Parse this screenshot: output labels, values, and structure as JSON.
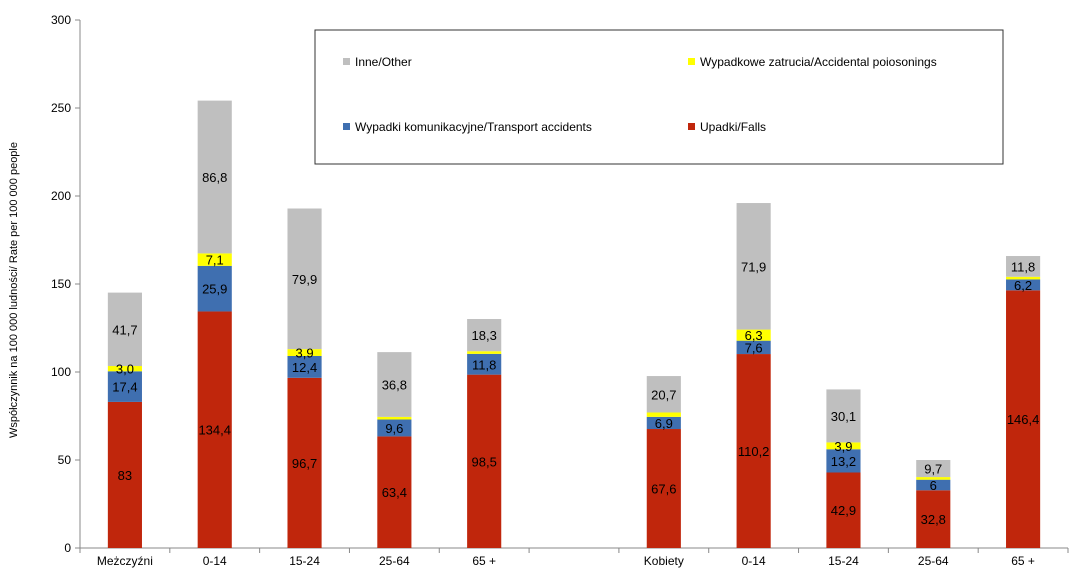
{
  "chart_data": {
    "type": "bar",
    "stacked": true,
    "ylabel": "Współczynnik na 100 000 ludności/ Rate per 100 000 people",
    "ylim": [
      0,
      300
    ],
    "yticks": [
      0,
      50,
      100,
      150,
      200,
      250,
      300
    ],
    "grid": false,
    "legend_position": "top-right (inside plot, boxed)",
    "categories": [
      "Meżczyźni",
      "0-14",
      "15-24",
      "25-64",
      "65 +",
      "",
      "Kobiety",
      "0-14",
      "15-24",
      "25-64",
      "65 +"
    ],
    "series": [
      {
        "name": "Upadki/Falls",
        "color": "#C0260C",
        "values": [
          83,
          134.4,
          96.7,
          63.4,
          98.5,
          null,
          67.6,
          110.2,
          42.9,
          32.8,
          146.4
        ],
        "labels": [
          "83",
          "134,4",
          "96,7",
          "63,4",
          "98,5",
          "",
          "67,6",
          "110,2",
          "42,9",
          "32,8",
          "146,4"
        ]
      },
      {
        "name": "Wypadki komunikacyjne/Transport accidents",
        "color": "#3F6FB0",
        "values": [
          17.4,
          25.9,
          12.4,
          9.6,
          11.8,
          null,
          6.9,
          7.6,
          13.2,
          6,
          6.2
        ],
        "labels": [
          "17,4",
          "25,9",
          "12,4",
          "9,6",
          "11,8",
          "",
          "6,9",
          "7,6",
          "13,2",
          "6",
          "6,2"
        ]
      },
      {
        "name": "Wypadkowe zatrucia/Accidental poiosonings",
        "color": "#FFFF00",
        "values": [
          3.0,
          7.1,
          3.9,
          1.5,
          1.5,
          null,
          2.5,
          6.3,
          3.9,
          1.5,
          1.5
        ],
        "labels": [
          "3,0",
          "7,1",
          "3,9",
          "",
          "",
          "",
          "",
          "6,3",
          "3,9",
          "",
          ""
        ]
      },
      {
        "name": "Inne/Other",
        "color": "#BFBFBF",
        "values": [
          41.7,
          86.8,
          79.9,
          36.8,
          18.3,
          null,
          20.7,
          71.9,
          30.1,
          9.7,
          11.8
        ],
        "labels": [
          "41,7",
          "86,8",
          "79,9",
          "36,8",
          "18,3",
          "",
          "20,7",
          "71,9",
          "30,1",
          "9,7",
          "11,8"
        ]
      }
    ],
    "legend_order": [
      3,
      2,
      1,
      0
    ]
  }
}
